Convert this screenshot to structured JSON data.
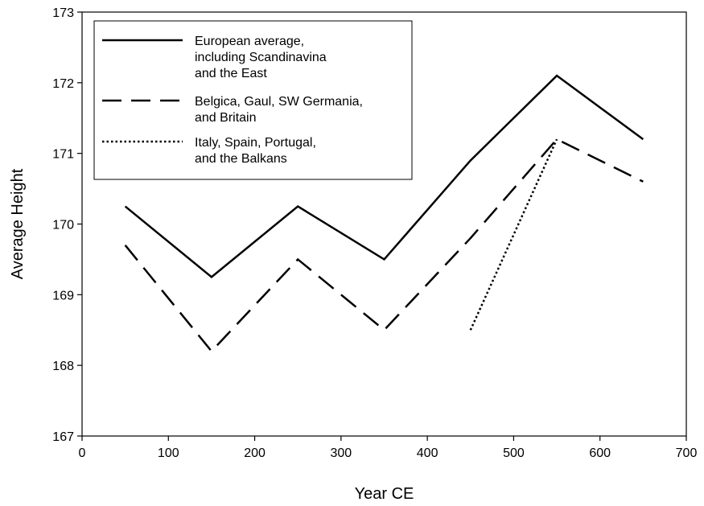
{
  "chart_data": {
    "type": "line",
    "xlabel": "Year CE",
    "ylabel": "Average Height",
    "xlim": [
      0,
      700
    ],
    "ylim": [
      167,
      173
    ],
    "xticks": [
      0,
      100,
      200,
      300,
      400,
      500,
      600,
      700
    ],
    "yticks": [
      167,
      168,
      169,
      170,
      171,
      172,
      173
    ],
    "grid": false,
    "legend_position": "top-left",
    "series": [
      {
        "name": "European average, including Scandinavina and the East",
        "legend_lines": [
          "European average,",
          "including Scandinavina",
          "and the East"
        ],
        "style": "solid",
        "x": [
          50,
          150,
          250,
          350,
          450,
          550,
          650
        ],
        "y": [
          170.25,
          169.25,
          170.25,
          169.5,
          170.9,
          172.1,
          171.2
        ]
      },
      {
        "name": "Belgica, Gaul, SW Germania, and Britain",
        "legend_lines": [
          "Belgica, Gaul, SW Germania,",
          "and Britain"
        ],
        "style": "dashed",
        "x": [
          50,
          150,
          250,
          350,
          450,
          550,
          650
        ],
        "y": [
          169.7,
          168.2,
          169.5,
          168.5,
          169.8,
          171.2,
          170.6
        ]
      },
      {
        "name": "Italy, Spain, Portugal, and the Balkans",
        "legend_lines": [
          "Italy, Spain, Portugal,",
          "and the Balkans"
        ],
        "style": "dotted",
        "x": [
          450,
          550
        ],
        "y": [
          168.5,
          171.2
        ]
      }
    ]
  }
}
